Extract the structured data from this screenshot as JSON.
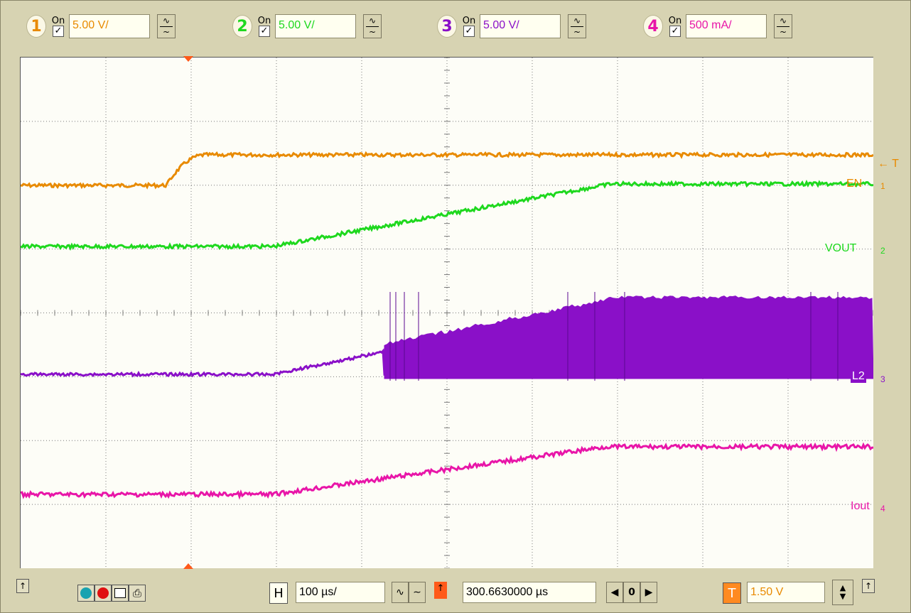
{
  "channels": [
    {
      "number": "1",
      "on_label": "On",
      "checked": "✓",
      "scale": "5.00 V/",
      "coupling": "∿",
      "color": "#e88a00",
      "scale_color": "#e88a00",
      "num_color": "#e88a00"
    },
    {
      "number": "2",
      "on_label": "On",
      "checked": "✓",
      "scale": "5.00 V/",
      "coupling": "∿",
      "color": "#1ed81e",
      "scale_color": "#1ed81e",
      "num_color": "#1ed81e"
    },
    {
      "number": "3",
      "on_label": "On",
      "checked": "✓",
      "scale": "5.00 V/",
      "coupling": "∿",
      "color": "#8a10c8",
      "scale_color": "#8a10c8",
      "num_color": "#8a10c8"
    },
    {
      "number": "4",
      "on_label": "On",
      "checked": "✓",
      "scale": "500 mA/",
      "coupling": "∿",
      "color": "#e815a8",
      "scale_color": "#e815a8",
      "num_color": "#e815a8"
    }
  ],
  "trace_labels": {
    "trigger": "← T",
    "en": "EN",
    "vout": "VOUT",
    "l2": "L2",
    "iout": "Iout",
    "ch1_marker": "1",
    "ch2_marker": "2",
    "ch3_marker": "3",
    "ch4_marker": "4"
  },
  "bottom": {
    "h_label": "H",
    "timebase": "100 µs/",
    "delay": "300.6630000 µs",
    "nav_value": "0",
    "t_label": "T",
    "trigger_level": "1.50 V",
    "up_arrow": "↑",
    "up_arrow2": "↑"
  },
  "colors": {
    "ch1": "#e88a00",
    "ch2": "#1ed81e",
    "ch3": "#8a10c8",
    "ch4": "#e815a8",
    "grid": "#7a7a7a"
  }
}
